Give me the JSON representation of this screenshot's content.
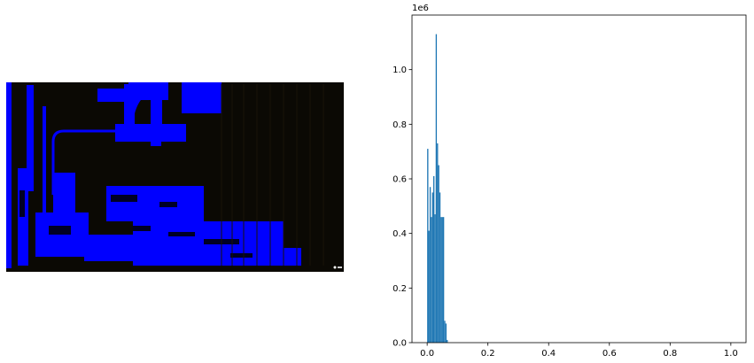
{
  "figure": {
    "left_image": {
      "description_name": "bedroom-blue-thresholded-image",
      "watermark_text": "",
      "colors": {
        "dark": "#0b0904",
        "blue": "#0000ff"
      }
    }
  },
  "chart_data": {
    "type": "bar",
    "title": "",
    "xlabel": "",
    "ylabel": "",
    "offset_text": "1e6",
    "xlim": [
      -0.05,
      1.05
    ],
    "ylim": [
      0,
      1.2
    ],
    "xticks": [
      0.0,
      0.2,
      0.4,
      0.6,
      0.8,
      1.0
    ],
    "xtick_labels": [
      "0.0",
      "0.2",
      "0.4",
      "0.6",
      "0.8",
      "1.0"
    ],
    "yticks": [
      0.0,
      0.2,
      0.4,
      0.6,
      0.8,
      1.0
    ],
    "ytick_labels": [
      "0.0",
      "0.2",
      "0.4",
      "0.6",
      "0.8",
      "1.0"
    ],
    "bin_width": 0.0039,
    "bins": [
      {
        "x": 0.0,
        "value": 0.71
      },
      {
        "x": 0.004,
        "value": 0.41
      },
      {
        "x": 0.008,
        "value": 0.57
      },
      {
        "x": 0.012,
        "value": 0.46
      },
      {
        "x": 0.016,
        "value": 0.55
      },
      {
        "x": 0.02,
        "value": 0.61
      },
      {
        "x": 0.024,
        "value": 0.47
      },
      {
        "x": 0.028,
        "value": 1.13
      },
      {
        "x": 0.032,
        "value": 0.73
      },
      {
        "x": 0.036,
        "value": 0.65
      },
      {
        "x": 0.04,
        "value": 0.55
      },
      {
        "x": 0.044,
        "value": 0.46
      },
      {
        "x": 0.048,
        "value": 0.46
      },
      {
        "x": 0.052,
        "value": 0.46
      },
      {
        "x": 0.056,
        "value": 0.08
      },
      {
        "x": 0.06,
        "value": 0.07
      },
      {
        "x": 0.064,
        "value": 0.01
      }
    ],
    "bar_color": "#1f77b4"
  }
}
